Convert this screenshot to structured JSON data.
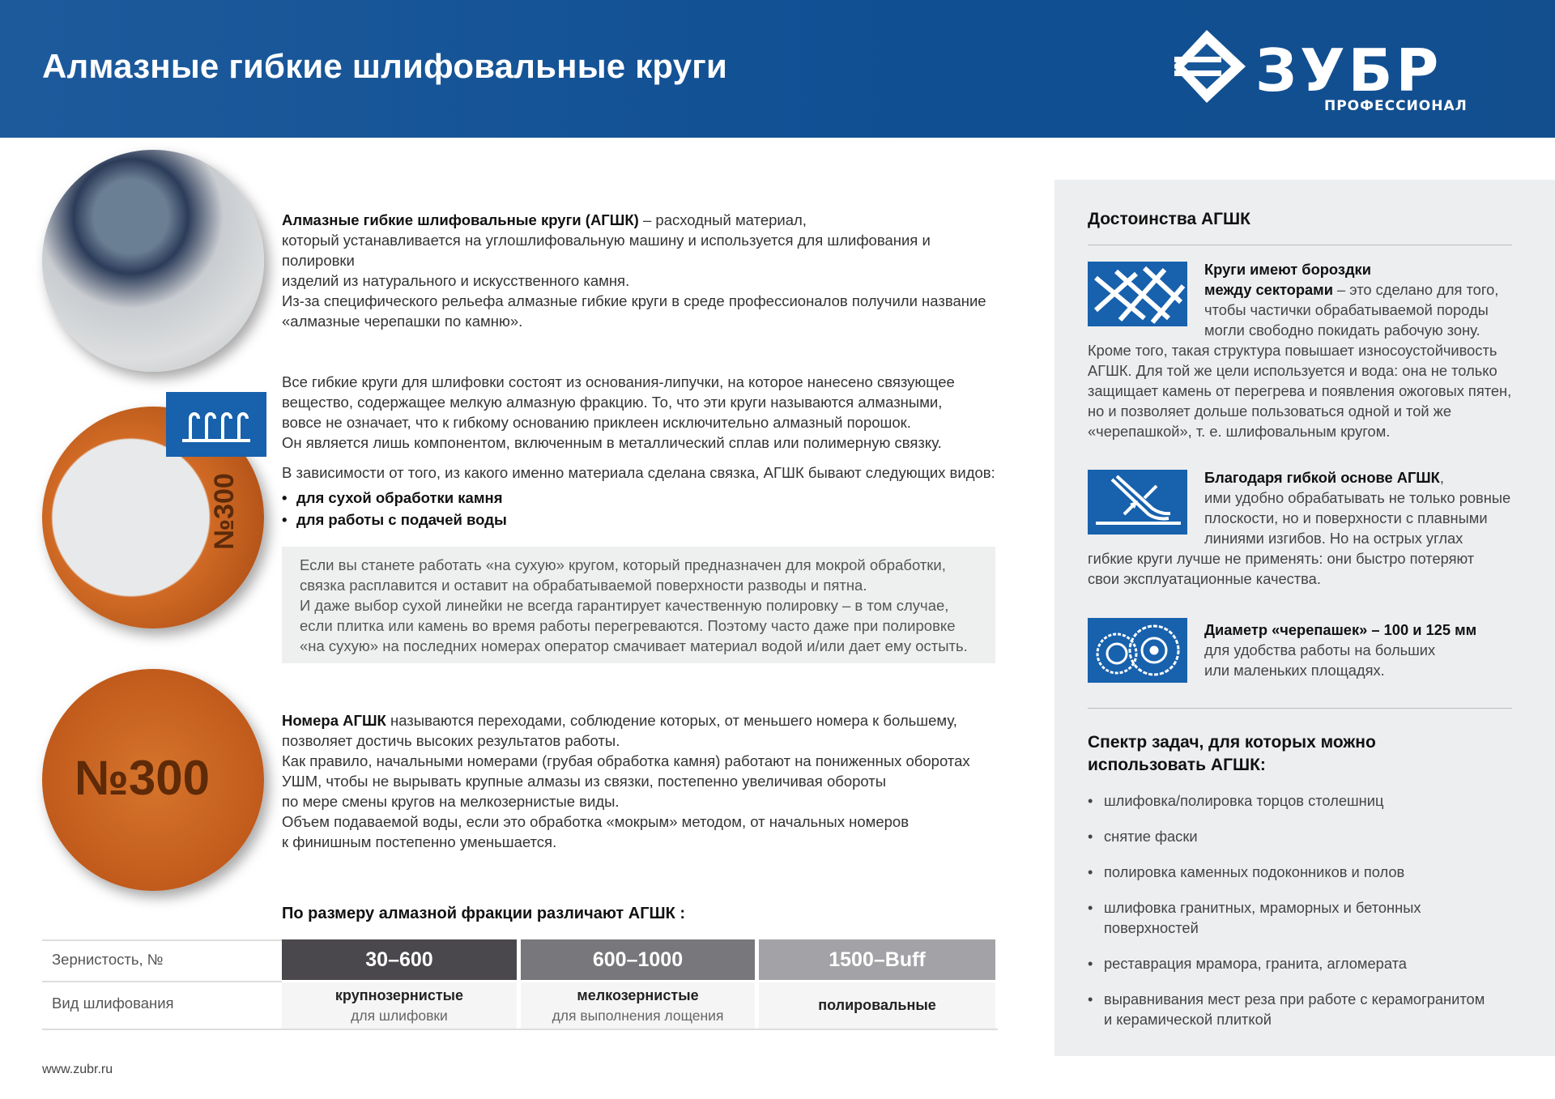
{
  "header": {
    "title": "Алмазные гибкие шлифовальные круги",
    "logo_text": "ЗУБР",
    "logo_subtitle": "ПРОФЕССИОНАЛ",
    "brand_color": "#0f4f92"
  },
  "intro": {
    "bold": "Алмазные гибкие шлифовальные круги (АГШК)",
    "lines": [
      "– расходный материал,",
      "который устанавливается на углошлифовальную машину и используется для шлифования и полировки",
      "изделий из натурального и искусственного камня.",
      "Из-за специфического рельефа алмазные гибкие круги в среде профессионалов получили название",
      "«алмазные черепашки по камню»."
    ]
  },
  "structure": {
    "lines": [
      "Все гибкие круги для шлифовки состоят из основания-липучки, на которое нанесено связующее",
      "вещество, содержащее мелкую алмазную фракцию. То, что эти круги называются алмазными,",
      "вовсе не означает, что к гибкому основанию приклеен исключительно алмазный порошок.",
      "Он является лишь компонентом, включенным в металлический сплав или полимерную связку."
    ],
    "types_intro": "В зависимости от того, из какого именно материала сделана связка, АГШК бывают следующих видов:",
    "types": [
      "для сухой обработки камня",
      "для работы с подачей воды"
    ]
  },
  "note": {
    "lines": [
      "Если вы станете работать «на сухую» кругом, который предназначен для мокрой обработки,",
      "связка расплавится и оставит на обрабатываемой поверхности разводы и пятна.",
      "И даже выбор сухой линейки не всегда гарантирует качественную полировку – в том случае,",
      "если плитка или камень во время работы перегреваются. Поэтому часто даже при полировке",
      "«на сухую» на последних номерах оператор смачивает материал водой и/или дает ему остыть."
    ]
  },
  "numbers": {
    "bold": "Номера АГШК",
    "lines": [
      "называются переходами, соблюдение которых, от меньшего номера к большему,",
      "позволяет достичь высоких результатов работы.",
      "Как правило, начальными номерами (грубая обработка камня) работают на пониженных оборотах",
      "УШМ, чтобы не вырывать крупные алмазы из связки, постепенно увеличивая обороты",
      "по мере смены кругов на мелкозернистые виды.",
      "Объем подаваемой воды, если это обработка «мокрым» методом, от начальных номеров",
      "к финишным постепенно уменьшается."
    ]
  },
  "disc_label": "№300",
  "table": {
    "heading": "По размеру алмазной фракции различают АГШК :",
    "row_labels": [
      "Зернистость, №",
      "Вид шлифования"
    ],
    "columns": [
      {
        "grit": "30–600",
        "type": "крупнозернистые",
        "sub": "для шлифовки",
        "color": "#4a484c"
      },
      {
        "grit": "600–1000",
        "type": "мелкозернистые",
        "sub": "для выполнения лощения",
        "color": "#78777b"
      },
      {
        "grit": "1500–Buff",
        "type": "полировальные",
        "sub": "",
        "color": "#a3a2a6"
      }
    ]
  },
  "footer": {
    "url": "www.zubr.ru"
  },
  "advantages": {
    "heading": "Достоинства АГШК",
    "items": [
      {
        "icon": "grid-grooves-icon",
        "bold": "Круги имеют бороздки",
        "bold2": "между секторами",
        "lines": [
          "– это сделано для того,",
          "чтобы частички обрабатываемой породы",
          "могли свободно покидать рабочую зону.",
          "Кроме того, такая структура повышает износоустойчивость",
          "АГШК. Для той же цели используется и вода: она не только",
          "защищает камень от перегрева и появления ожоговых пятен,",
          "но и позволяет дольше пользоваться одной и той же",
          "«черепашкой», т. е. шлифовальным кругом."
        ]
      },
      {
        "icon": "flexible-base-icon",
        "bold": "Благодаря гибкой основе АГШК",
        "lines": [
          ",",
          "ими удобно обрабатывать не только ровные",
          "плоскости, но и поверхности с плавными",
          "линиями изгибов. Но на острых углах",
          "гибкие круги лучше не применять: они быстро потеряют",
          "свои эксплуатационные качества."
        ]
      },
      {
        "icon": "two-discs-icon",
        "bold": "Диаметр «черепашек» – 100 и 125 мм",
        "lines": [
          "для удобства работы на больших",
          "или маленьких площадях."
        ]
      }
    ]
  },
  "tasks": {
    "heading_lines": [
      "Спектр задач, для которых можно",
      "использовать АГШК:"
    ],
    "items": [
      "шлифовка/полировка торцов столешниц",
      "снятие фаски",
      "полировка каменных подоконников и полов",
      "шлифовка гранитных, мраморных и бетонных поверхностей",
      "реставрация мрамора, гранита, агломерата",
      "выравнивания мест реза при работе с керамогранитом и керамической плиткой"
    ]
  }
}
